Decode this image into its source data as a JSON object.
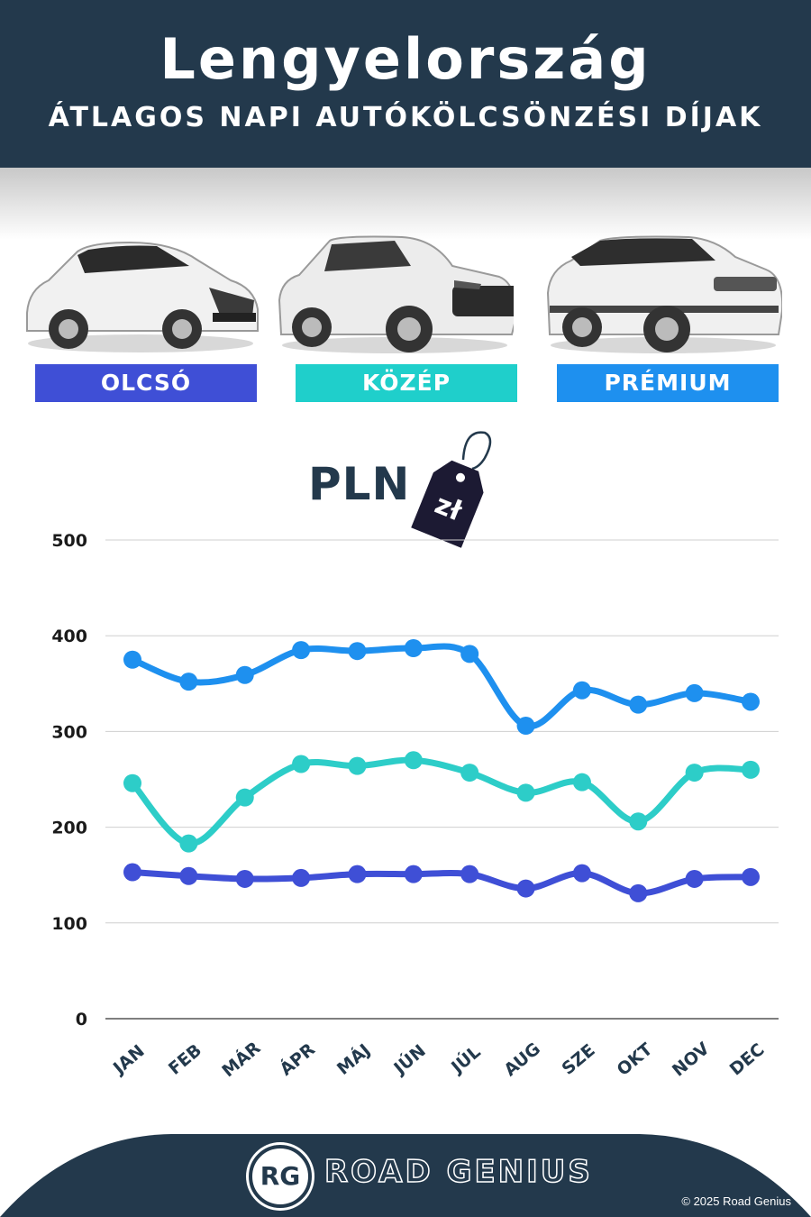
{
  "header": {
    "title": "Lengyelország",
    "subtitle": "ÁTLAGOS NAPI AUTÓKÖLCSÖNZÉSI DÍJAK"
  },
  "categories": [
    {
      "label": "OLCSÓ",
      "color": "#3f4fd6"
    },
    {
      "label": "KÖZÉP",
      "color": "#1fcfcb"
    },
    {
      "label": "PRÉMIUM",
      "color": "#1e90ef"
    }
  ],
  "currency": {
    "label": "PLN",
    "tag_text": "zł",
    "tag_icon": "price-tag-icon"
  },
  "chart_data": {
    "type": "line",
    "categories": [
      "JAN",
      "FEB",
      "MÁR",
      "ÁPR",
      "MÁJ",
      "JÚN",
      "JÚL",
      "AUG",
      "SZE",
      "OKT",
      "NOV",
      "DEC"
    ],
    "yticks": [
      0,
      100,
      200,
      300,
      400,
      500
    ],
    "ylim": [
      0,
      500
    ],
    "grid": true,
    "series": [
      {
        "name": "PRÉMIUM",
        "color": "#1e90ef",
        "values": [
          375,
          352,
          359,
          385,
          384,
          387,
          381,
          306,
          343,
          328,
          340,
          331
        ]
      },
      {
        "name": "KÖZÉP",
        "color": "#2dcdc8",
        "values": [
          246,
          183,
          231,
          266,
          264,
          270,
          257,
          236,
          247,
          206,
          257,
          260
        ]
      },
      {
        "name": "OLCSÓ",
        "color": "#3f4fd6",
        "values": [
          153,
          149,
          146,
          147,
          151,
          151,
          151,
          136,
          152,
          131,
          146,
          148
        ]
      }
    ]
  },
  "footer": {
    "logo_text": "RG",
    "brand": "ROAD GENIUS",
    "copyright": "© 2025 Road Genius",
    "background": "#23394c"
  }
}
